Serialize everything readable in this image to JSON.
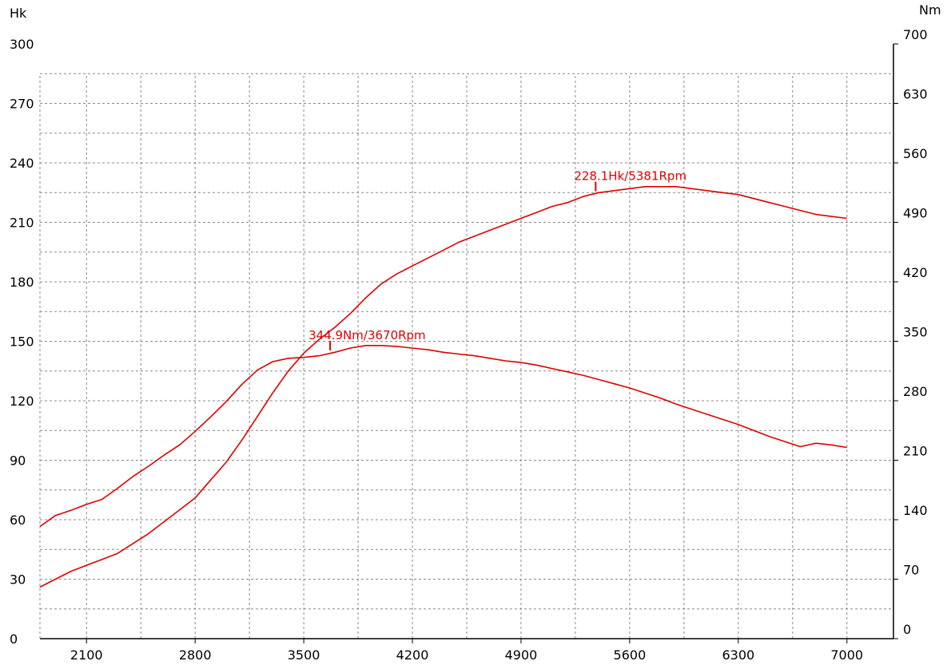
{
  "chart_data": {
    "type": "line",
    "left_unit": "Hk",
    "right_unit": "Nm",
    "x_range": [
      1800,
      7300
    ],
    "x_ticks": [
      2100,
      2800,
      3500,
      4200,
      4900,
      5600,
      6300,
      7000
    ],
    "left_ylim": [
      0,
      300
    ],
    "left_ticks": [
      0,
      30,
      60,
      90,
      120,
      150,
      180,
      210,
      240,
      270,
      300
    ],
    "right_ylim": [
      0,
      700
    ],
    "right_ticks": [
      0,
      70,
      140,
      210,
      280,
      350,
      420,
      490,
      560,
      630,
      700
    ],
    "grid": true,
    "line_color": "#dd0000",
    "series": [
      {
        "axis": "left",
        "x": [
          1800,
          1900,
          2000,
          2100,
          2200,
          2300,
          2400,
          2500,
          2600,
          2700,
          2800,
          2900,
          3000,
          3100,
          3200,
          3300,
          3400,
          3500,
          3600,
          3700,
          3800,
          3900,
          4000,
          4100,
          4200,
          4300,
          4400,
          4500,
          4600,
          4700,
          4800,
          4900,
          5000,
          5100,
          5200,
          5300,
          5400,
          5500,
          5600,
          5700,
          5800,
          5900,
          6000,
          6100,
          6200,
          6300,
          6400,
          6500,
          6600,
          6700,
          6800,
          6900,
          7000
        ],
        "values": [
          26,
          30,
          34,
          37,
          40,
          43,
          48,
          53,
          59,
          65,
          71,
          80,
          89,
          100,
          112,
          124,
          135,
          144,
          151,
          157,
          164,
          172,
          179,
          184,
          188,
          192,
          196,
          200,
          203,
          206,
          209,
          212,
          215,
          218,
          220,
          223,
          225,
          226,
          227,
          228,
          228,
          228,
          227,
          226,
          225,
          224,
          222,
          220,
          218,
          216,
          214,
          213,
          212
        ]
      },
      {
        "axis": "right",
        "x": [
          1800,
          1900,
          2000,
          2100,
          2200,
          2300,
          2400,
          2500,
          2600,
          2700,
          2800,
          2900,
          3000,
          3100,
          3200,
          3300,
          3400,
          3500,
          3600,
          3700,
          3800,
          3900,
          4000,
          4100,
          4200,
          4300,
          4400,
          4500,
          4600,
          4700,
          4800,
          4900,
          5000,
          5100,
          5200,
          5300,
          5400,
          5500,
          5600,
          5700,
          5800,
          5900,
          6000,
          6100,
          6200,
          6300,
          6400,
          6500,
          6600,
          6700,
          6800,
          6900,
          7000
        ],
        "values": [
          132,
          145,
          151,
          158,
          164,
          177,
          191,
          203,
          216,
          228,
          244,
          261,
          279,
          299,
          316,
          326,
          330,
          331,
          333,
          337,
          342,
          345,
          345,
          344,
          342,
          340,
          337,
          335,
          333,
          330,
          327,
          325,
          322,
          318,
          314,
          310,
          305,
          300,
          295,
          289,
          283,
          276,
          270,
          264,
          258,
          252,
          245,
          238,
          232,
          226,
          230,
          228,
          225
        ]
      }
    ],
    "annotations": [
      {
        "text": "228.1Hk/5381Rpm",
        "x": 5381,
        "value": 228.1,
        "axis": "left"
      },
      {
        "text": "344.9Nm/3670Rpm",
        "x": 3670,
        "value": 344.9,
        "axis": "right"
      }
    ]
  }
}
